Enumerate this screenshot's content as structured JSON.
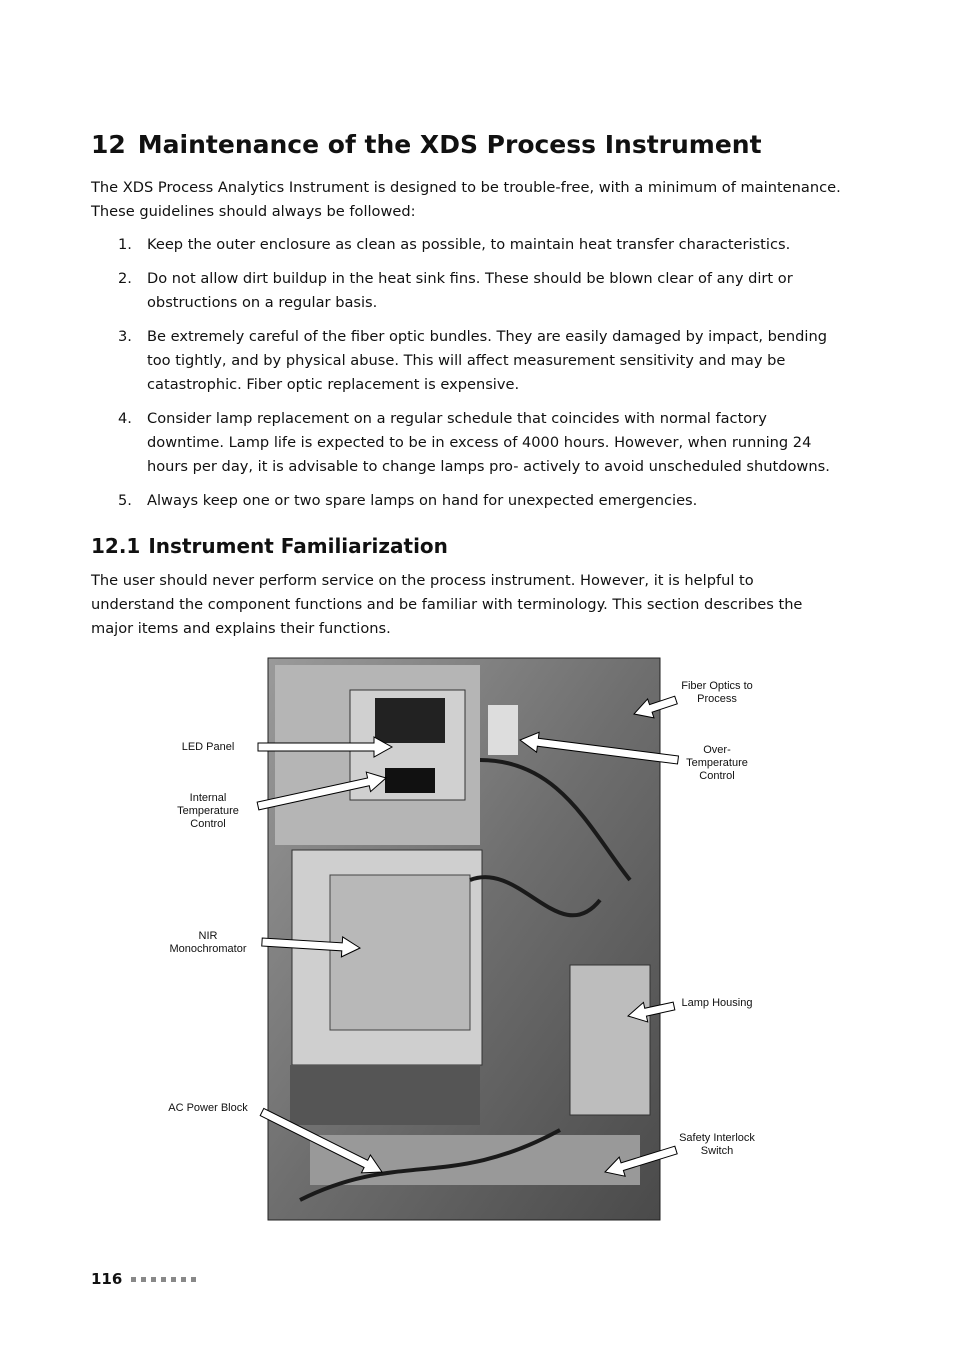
{
  "header": {
    "number": "12",
    "title": "Maintenance of the XDS Process Instrument"
  },
  "intro": "The XDS Process Analytics Instrument is designed to be trouble-free, with a minimum of maintenance. These guidelines should always be followed:",
  "list": [
    {
      "marker": "1.",
      "text": "Keep the outer enclosure as clean as possible, to maintain heat transfer characteristics."
    },
    {
      "marker": "2.",
      "text": "Do not allow dirt buildup in the heat sink fins. These should be blown clear of any dirt or obstructions on a regular basis."
    },
    {
      "marker": "3.",
      "text": "Be extremely careful of the fiber optic bundles. They are easily damaged by impact, bending too tightly, and by physical abuse. This will affect measurement sensitivity and may be catastrophic. Fiber optic replacement is expensive."
    },
    {
      "marker": "4.",
      "text": "Consider lamp replacement on a regular schedule that coincides with normal factory downtime. Lamp life is expected to be in excess of 4000 hours. However, when running 24 hours per day, it is advisable to change lamps pro- actively to avoid unscheduled shutdowns."
    },
    {
      "marker": "5.",
      "text": "Always keep one or two spare lamps on hand for unexpected emergencies."
    }
  ],
  "section": {
    "number": "12.1",
    "title": "Instrument Familiarization",
    "paragraph": "The user should never perform service on the process instrument. However, it is helpful to understand the component functions and be familiar with terminology. This section describes the major items and explains their functions."
  },
  "figure": {
    "labels": [
      {
        "lines": [
          "LED Panel"
        ]
      },
      {
        "lines": [
          "Internal",
          "Temperature",
          "Control"
        ]
      },
      {
        "lines": [
          "NIR",
          "Monochromator"
        ]
      },
      {
        "lines": [
          "AC Power Block"
        ]
      },
      {
        "lines": [
          "Fiber Optics to",
          "Process"
        ]
      },
      {
        "lines": [
          "Over-",
          "Temperature",
          "Control"
        ]
      },
      {
        "lines": [
          "Lamp Housing"
        ]
      },
      {
        "lines": [
          "Safety Interlock",
          "Switch"
        ]
      }
    ]
  },
  "footer": {
    "page_number": "116"
  }
}
